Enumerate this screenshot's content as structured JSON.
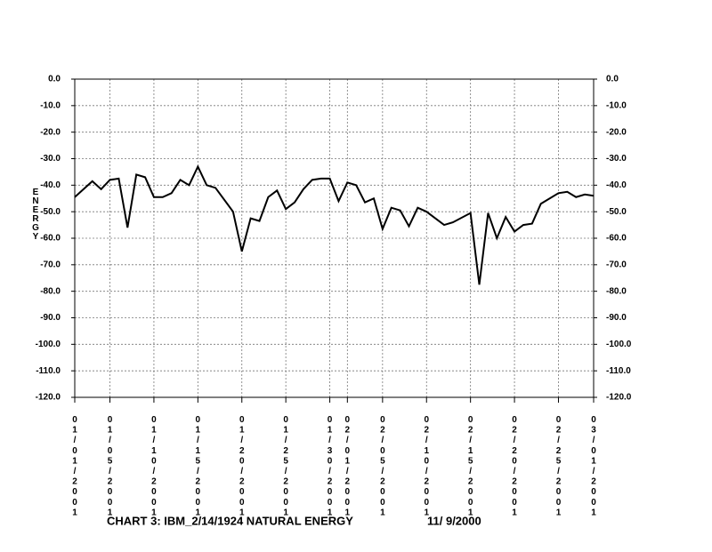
{
  "chart_data": {
    "type": "line",
    "title": "CHART 3: IBM_2/14/1924 NATURAL ENERGY",
    "subtitle": "11/ 9/2000",
    "y_label": "ENERGY",
    "color": "#000000",
    "grid": true,
    "x": [
      "01/01/2001",
      "01/03/2001",
      "01/04/2001",
      "01/05/2001",
      "01/06/2001",
      "01/07/2001",
      "01/08/2001",
      "01/09/2001",
      "01/10/2001",
      "01/11/2001",
      "01/12/2001",
      "01/13/2001",
      "01/14/2001",
      "01/15/2001",
      "01/16/2001",
      "01/17/2001",
      "01/19/2001",
      "01/20/2001",
      "01/21/2001",
      "01/22/2001",
      "01/23/2001",
      "01/24/2001",
      "01/25/2001",
      "01/26/2001",
      "01/27/2001",
      "01/28/2001",
      "01/29/2001",
      "01/30/2001",
      "01/31/2001",
      "02/01/2001",
      "02/02/2001",
      "02/03/2001",
      "02/04/2001",
      "02/05/2001",
      "02/06/2001",
      "02/07/2001",
      "02/08/2001",
      "02/09/2001",
      "02/10/2001",
      "02/12/2001",
      "02/13/2001",
      "02/15/2001",
      "02/16/2001",
      "02/17/2001",
      "02/18/2001",
      "02/19/2001",
      "02/20/2001",
      "02/21/2001",
      "02/22/2001",
      "02/23/2001",
      "02/25/2001",
      "02/26/2001",
      "02/27/2001",
      "02/28/2001",
      "03/01/2001"
    ],
    "values": [
      -44.5,
      -38.5,
      -41.5,
      -38,
      -37.5,
      -56,
      -36,
      -37,
      -44.5,
      -44.5,
      -43,
      -38,
      -40,
      -33,
      -40,
      -41,
      -50,
      -65,
      -52.5,
      -53.5,
      -44.5,
      -42,
      -49,
      -46.5,
      -41.5,
      -38,
      -37.5,
      -37.5,
      -46,
      -39,
      -40,
      -46.5,
      -45,
      -56.5,
      -48.5,
      -49.5,
      -55.5,
      -48.5,
      -50,
      -55,
      -54,
      -50.5,
      -77.5,
      -50.5,
      -60,
      -52,
      -57.5,
      -55,
      -54.5,
      -47,
      -43,
      -42.5,
      -44.5,
      -43.5,
      -44
    ],
    "xlim": [
      "01/01/2001",
      "03/01/2001"
    ],
    "xticks": [
      "01/01/2001",
      "01/05/2001",
      "01/10/2001",
      "01/15/2001",
      "01/20/2001",
      "01/25/2001",
      "01/30/2001",
      "02/01/2001",
      "02/05/2001",
      "02/10/2001",
      "02/15/2001",
      "02/20/2001",
      "02/25/2001",
      "03/01/2001"
    ],
    "ylim": [
      -120,
      0
    ],
    "yticks": [
      {
        "value": 0,
        "label": "0.0"
      },
      {
        "value": -10,
        "label": "-10.0"
      },
      {
        "value": -20,
        "label": "-20.0"
      },
      {
        "value": -30,
        "label": "-30.0"
      },
      {
        "value": -40,
        "label": "-40.0"
      },
      {
        "value": -50,
        "label": "-50.0"
      },
      {
        "value": -60,
        "label": "-60.0"
      },
      {
        "value": -70,
        "label": "-70.0"
      },
      {
        "value": -80,
        "label": "-80.0"
      },
      {
        "value": -90,
        "label": "-90.0"
      },
      {
        "value": -100,
        "label": "-100.0"
      },
      {
        "value": -110,
        "label": "-110.0"
      },
      {
        "value": -120,
        "label": "-120.0"
      }
    ]
  }
}
